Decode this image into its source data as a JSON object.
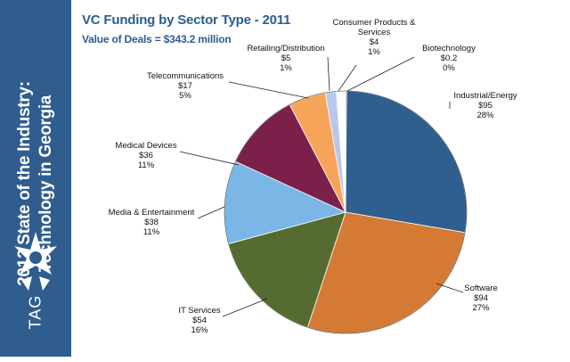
{
  "sidebar": {
    "title_line1": "2012 State of the Industry:",
    "title_line2": "Technology in Georgia",
    "logo_text": "TAG",
    "logo_icon": "tag-star-icon",
    "background": "#2e5d8e"
  },
  "chart_data": {
    "type": "pie",
    "title": "VC Funding by Sector Type - 2011",
    "subtitle": "Value of Deals = $343.2 million",
    "start": "12 o'clock, clockwise",
    "slices": [
      {
        "name": "Industrial/Energy",
        "value": 95,
        "value_label": "$95",
        "percent_label": "28%",
        "color": "#2f5f8e"
      },
      {
        "name": "Software",
        "value": 94,
        "value_label": "$94",
        "percent_label": "27%",
        "color": "#d47a35"
      },
      {
        "name": "IT Services",
        "value": 54,
        "value_label": "$54",
        "percent_label": "16%",
        "color": "#556b2f"
      },
      {
        "name": "Media & Entertainment",
        "value": 38,
        "value_label": "$38",
        "percent_label": "11%",
        "color": "#7ab7e6"
      },
      {
        "name": "Medical Devices",
        "value": 36,
        "value_label": "$36",
        "percent_label": "11%",
        "color": "#7b1f4b"
      },
      {
        "name": "Telecommunications",
        "value": 17,
        "value_label": "$17",
        "percent_label": "5%",
        "color": "#f6a45a"
      },
      {
        "name": "Retailing/Distribution",
        "value": 5,
        "value_label": "$5",
        "percent_label": "1%",
        "color": "#b8c8ec"
      },
      {
        "name": "Consumer Products & Services",
        "value": 4,
        "value_label": "$4",
        "percent_label": "1%",
        "color": "#ffffff"
      },
      {
        "name": "Biotechnology",
        "value": 0.2,
        "value_label": "$0.2",
        "percent_label": "0%",
        "color": "#f7a8b8"
      }
    ]
  }
}
